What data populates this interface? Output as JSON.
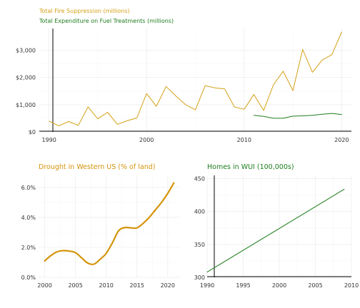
{
  "colors": {
    "suppression": "#d4a017",
    "fuel": "#1e7d1e",
    "drought": "#d4940a",
    "wui": "#1e7d1e"
  },
  "chart_data": [
    {
      "id": "top",
      "type": "line",
      "title": "",
      "xlabel": "",
      "ylabel": "",
      "xlim": [
        1989,
        2021
      ],
      "ylim": [
        0,
        3800
      ],
      "xticks": [
        1990,
        2000,
        2010,
        2020
      ],
      "xtick_labels": [
        "1990",
        "2000",
        "2010",
        "2020"
      ],
      "yticks": [
        0,
        1000,
        2000,
        3000
      ],
      "ytick_labels": [
        "$0",
        "$1,000",
        "$2,000",
        "$3,000"
      ],
      "legend": [
        "Total Fire Suppression (millions)",
        "Total Expenditure on Fuel Treatments (millions)"
      ],
      "series": [
        {
          "name": "Total Fire Suppression (millions)",
          "color_key": "suppression",
          "x": [
            1990,
            1991,
            1992,
            1993,
            1994,
            1995,
            1996,
            1997,
            1998,
            1999,
            2000,
            2001,
            2002,
            2003,
            2004,
            2005,
            2006,
            2007,
            2008,
            2009,
            2010,
            2011,
            2012,
            2013,
            2014,
            2015,
            2016,
            2017,
            2018,
            2019,
            2020
          ],
          "values": [
            390,
            220,
            380,
            240,
            920,
            480,
            720,
            280,
            410,
            510,
            1410,
            940,
            1670,
            1320,
            1000,
            810,
            1700,
            1620,
            1580,
            920,
            830,
            1370,
            790,
            1730,
            2230,
            1520,
            3030,
            2190,
            2640,
            2840,
            3670
          ]
        },
        {
          "name": "Total Expenditure on Fuel Treatments (millions)",
          "color_key": "fuel",
          "x": [
            2011,
            2012,
            2013,
            2014,
            2015,
            2016,
            2017,
            2018,
            2019,
            2020
          ],
          "values": [
            610,
            570,
            500,
            500,
            580,
            590,
            610,
            650,
            680,
            640
          ]
        }
      ]
    },
    {
      "id": "drought",
      "type": "line",
      "title": "Drought in Western US (% of land)",
      "xlabel": "",
      "ylabel": "",
      "xlim": [
        1999,
        2022
      ],
      "ylim": [
        0,
        6.8
      ],
      "xticks": [
        2000,
        2005,
        2010,
        2015,
        2020
      ],
      "xtick_labels": [
        "2000",
        "2005",
        "2010",
        "2015",
        "2020"
      ],
      "yticks": [
        0,
        2,
        4,
        6
      ],
      "ytick_labels": [
        "0.0%",
        "2.0%",
        "4.0%",
        "6.0%"
      ],
      "series": [
        {
          "name": "Drought in Western US (% of land)",
          "color_key": "drought",
          "x": [
            2000,
            2001,
            2002,
            2003,
            2004,
            2005,
            2006,
            2007,
            2008,
            2009,
            2010,
            2011,
            2012,
            2013,
            2014,
            2015,
            2016,
            2017,
            2018,
            2019,
            2020,
            2021
          ],
          "values": [
            1.1,
            1.45,
            1.7,
            1.78,
            1.75,
            1.65,
            1.3,
            0.95,
            0.88,
            1.2,
            1.6,
            2.3,
            3.1,
            3.32,
            3.3,
            3.3,
            3.6,
            4.0,
            4.5,
            5.0,
            5.6,
            6.3
          ]
        }
      ]
    },
    {
      "id": "wui",
      "type": "line",
      "title": "Homes in WUI (100,000s)",
      "xlabel": "",
      "ylabel": "",
      "xlim": [
        1990,
        2010
      ],
      "ylim": [
        300,
        455
      ],
      "xticks": [
        1990,
        1995,
        2000,
        2005,
        2010
      ],
      "xtick_labels": [
        "1990",
        "1995",
        "2000",
        "2005",
        "2010"
      ],
      "yticks": [
        300,
        350,
        400,
        450
      ],
      "ytick_labels": [
        "300",
        "350",
        "400",
        "450"
      ],
      "series": [
        {
          "name": "Homes in WUI (100,000s)",
          "color_key": "wui",
          "x": [
            1990,
            2009
          ],
          "values": [
            308,
            434
          ]
        }
      ]
    }
  ]
}
